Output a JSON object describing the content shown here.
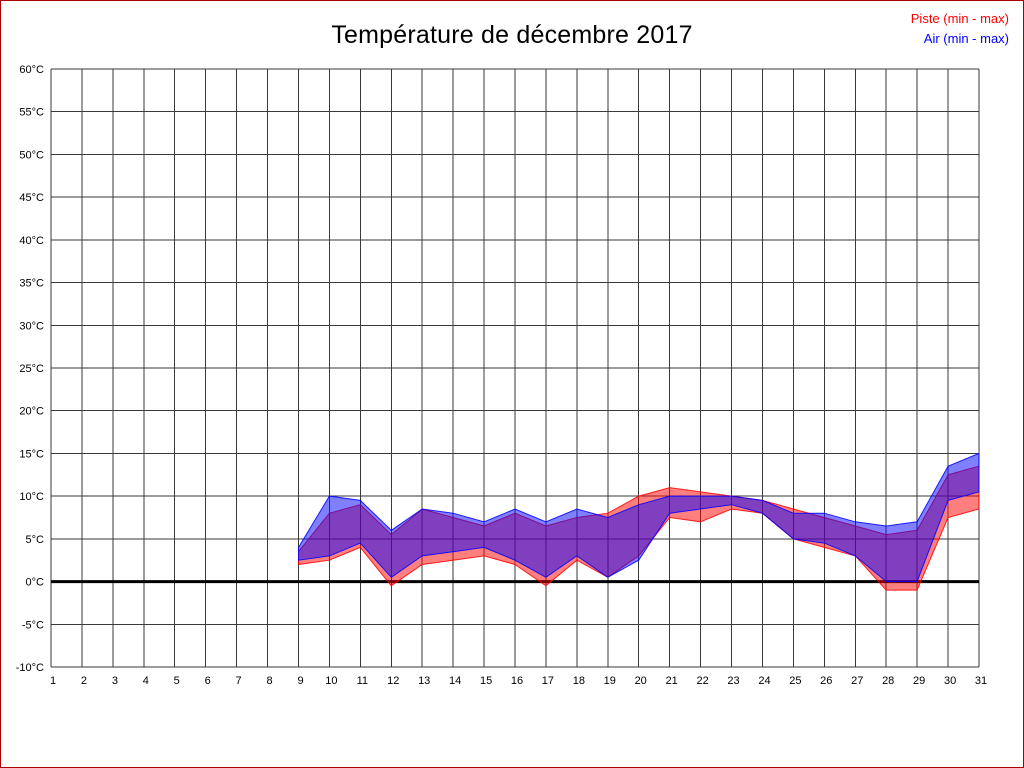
{
  "page": {
    "background": "#ffffff",
    "border_color": "#aa0000",
    "zero_line_color": "#000000",
    "grid_color": "#3a3a3a"
  },
  "chart_data": {
    "type": "area",
    "title": "Température de décembre 2017",
    "xlabel": "",
    "ylabel": "",
    "x_range": [
      1,
      31
    ],
    "y_range": [
      -10,
      60
    ],
    "y_tick_step": 5,
    "y_unit": "°C",
    "grid": true,
    "zero_line": true,
    "legend_position": "top-right",
    "series": [
      {
        "name": "Piste (min - max)",
        "color": "#ff0000",
        "x": [
          9,
          10,
          11,
          12,
          13,
          14,
          15,
          16,
          17,
          18,
          19,
          20,
          21,
          22,
          23,
          24,
          25,
          26,
          27,
          28,
          29,
          30,
          31
        ],
        "min": [
          2,
          2.5,
          4,
          -0.5,
          2,
          2.5,
          3,
          2,
          -0.5,
          2.5,
          0.5,
          3,
          7.5,
          7,
          8.5,
          8,
          5,
          4,
          3,
          -1,
          -1,
          7.5,
          8.5
        ],
        "max": [
          3.5,
          8,
          9,
          5.5,
          8.5,
          7.5,
          6.5,
          8,
          6.5,
          7.5,
          8,
          10,
          11,
          10.5,
          10,
          9.5,
          8.5,
          7.5,
          6.5,
          5.5,
          6,
          12.5,
          13.5
        ]
      },
      {
        "name": "Air (min - max)",
        "color": "#0000ff",
        "x": [
          9,
          10,
          11,
          12,
          13,
          14,
          15,
          16,
          17,
          18,
          19,
          20,
          21,
          22,
          23,
          24,
          25,
          26,
          27,
          28,
          29,
          30,
          31
        ],
        "min": [
          2.5,
          3,
          4.5,
          0.5,
          3,
          3.5,
          4,
          2.5,
          0.5,
          3,
          0.5,
          2.5,
          8,
          8.5,
          9,
          8,
          5,
          4.5,
          3,
          0,
          0,
          9.5,
          10.5
        ],
        "max": [
          4,
          10,
          9.5,
          6,
          8.5,
          8,
          7,
          8.5,
          7,
          8.5,
          7.5,
          9,
          10,
          10,
          10,
          9.5,
          8,
          8,
          7,
          6.5,
          7,
          13.5,
          15
        ]
      }
    ]
  }
}
